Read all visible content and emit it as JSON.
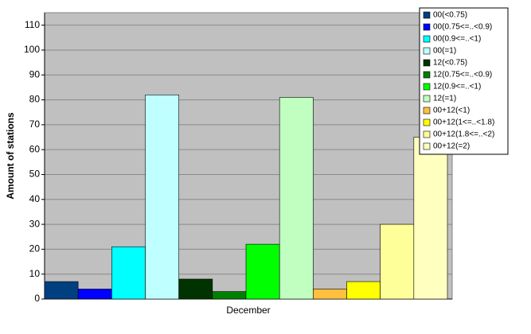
{
  "chart_data": {
    "type": "bar",
    "y_label": "Amount of stations",
    "categories": [
      "December"
    ],
    "ylim": [
      0,
      115
    ],
    "yticks": [
      0,
      10,
      20,
      30,
      40,
      50,
      60,
      70,
      80,
      90,
      100,
      110
    ],
    "grid": true,
    "series": [
      {
        "name": "00(<0.75)",
        "color": "#004080",
        "values": [
          7
        ]
      },
      {
        "name": "00(0.75<=..<0.9)",
        "color": "#0000ff",
        "values": [
          4
        ]
      },
      {
        "name": "00(0.9<=..<1)",
        "color": "#00ffff",
        "values": [
          21
        ]
      },
      {
        "name": "00(=1)",
        "color": "#c0ffff",
        "values": [
          82
        ]
      },
      {
        "name": "12(<0.75)",
        "color": "#003300",
        "values": [
          8
        ]
      },
      {
        "name": "12(0.75<=..<0.9)",
        "color": "#008000",
        "values": [
          3
        ]
      },
      {
        "name": "12(0.9<=..<1)",
        "color": "#00ff00",
        "values": [
          22
        ]
      },
      {
        "name": "12(=1)",
        "color": "#c0ffc0",
        "values": [
          81
        ]
      },
      {
        "name": "00+12(<1)",
        "color": "#ffc040",
        "values": [
          4
        ]
      },
      {
        "name": "00+12(1<=..<1.8)",
        "color": "#ffff00",
        "values": [
          7
        ]
      },
      {
        "name": "00+12(1.8<=..<2)",
        "color": "#ffff99",
        "values": [
          30
        ]
      },
      {
        "name": "00+12(=2)",
        "color": "#ffffc0",
        "values": [
          65
        ]
      }
    ]
  }
}
